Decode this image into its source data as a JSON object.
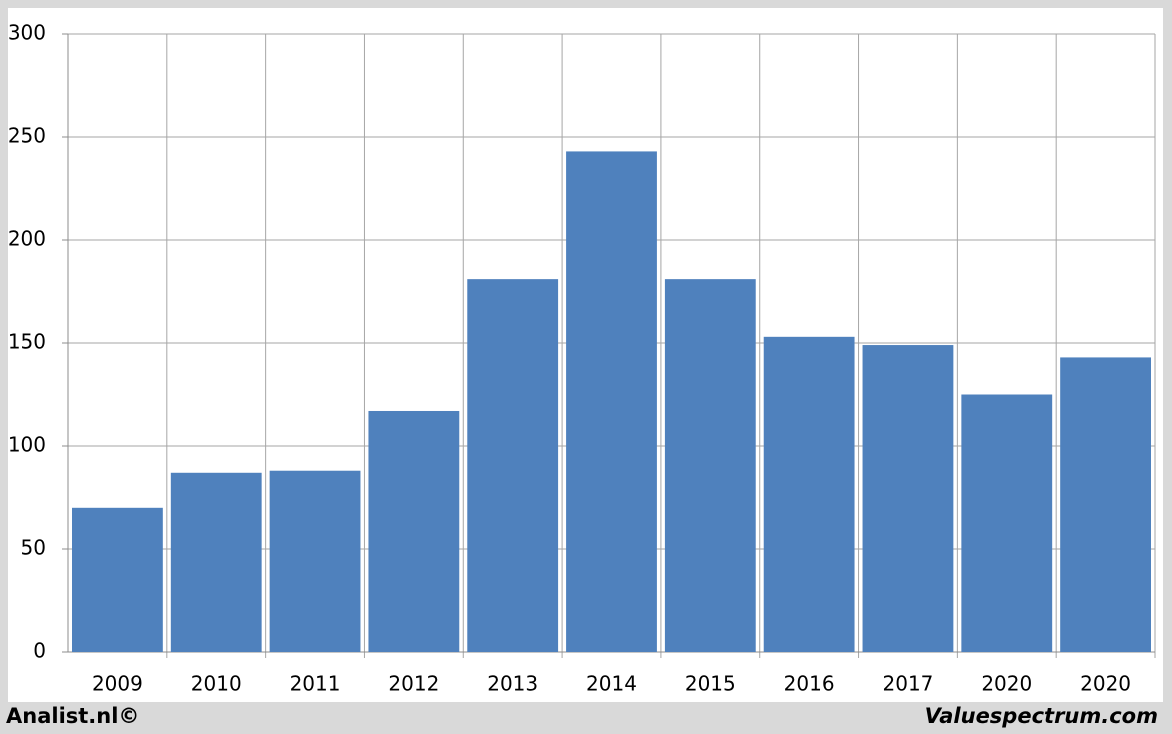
{
  "chart_data": {
    "type": "bar",
    "categories": [
      "2009",
      "2010",
      "2011",
      "2012",
      "2013",
      "2014",
      "2015",
      "2016",
      "2017",
      "2020",
      "2020"
    ],
    "values": [
      70,
      87,
      88,
      117,
      181,
      243,
      181,
      153,
      149,
      125,
      143
    ],
    "color": "#4f81bd",
    "ylim": [
      0,
      300
    ],
    "yticks": [
      0,
      50,
      100,
      150,
      200,
      250,
      300
    ],
    "grid": true,
    "source_left": "Analist.nl©",
    "source_right": "Valuespectrum.com"
  }
}
